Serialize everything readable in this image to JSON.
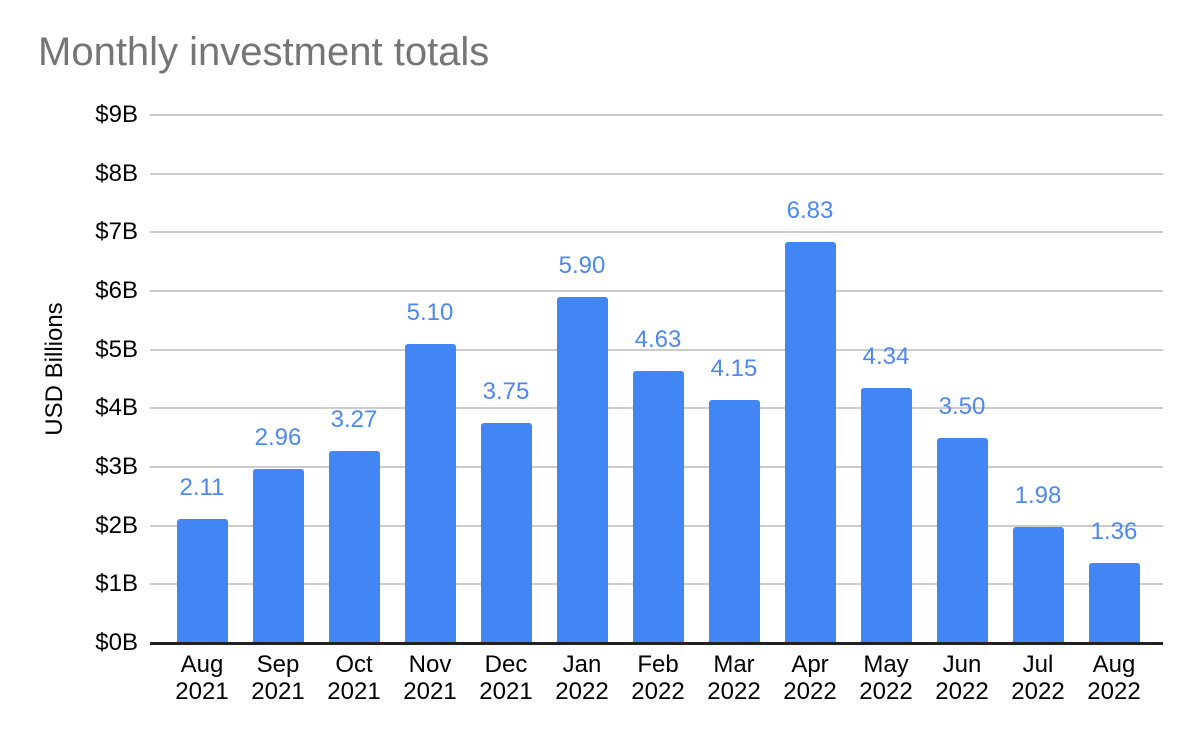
{
  "chart_data": {
    "type": "bar",
    "title": "Monthly investment totals",
    "xlabel": "",
    "ylabel": "USD Billions",
    "categories": [
      "Aug 2021",
      "Sep 2021",
      "Oct 2021",
      "Nov 2021",
      "Dec 2021",
      "Jan 2022",
      "Feb 2022",
      "Mar 2022",
      "Apr 2022",
      "May 2022",
      "Jun 2022",
      "Jul 2022",
      "Aug 2022"
    ],
    "values": [
      2.11,
      2.96,
      3.27,
      5.1,
      3.75,
      5.9,
      4.63,
      4.15,
      6.83,
      4.34,
      3.5,
      1.98,
      1.36
    ],
    "data_labels": [
      "2.11",
      "2.96",
      "3.27",
      "5.10",
      "3.75",
      "5.90",
      "4.63",
      "4.15",
      "6.83",
      "4.34",
      "3.50",
      "1.98",
      "1.36"
    ],
    "ylim": [
      0,
      9
    ],
    "yticks": [
      {
        "value": 0,
        "label": "$0B"
      },
      {
        "value": 1,
        "label": "$1B"
      },
      {
        "value": 2,
        "label": "$2B"
      },
      {
        "value": 3,
        "label": "$3B"
      },
      {
        "value": 4,
        "label": "$4B"
      },
      {
        "value": 5,
        "label": "$5B"
      },
      {
        "value": 6,
        "label": "$6B"
      },
      {
        "value": 7,
        "label": "$7B"
      },
      {
        "value": 8,
        "label": "$8B"
      },
      {
        "value": 9,
        "label": "$9B"
      }
    ],
    "grid": true,
    "legend": "none",
    "colors": {
      "bar": "#4285f4",
      "data_label": "#4d88f0",
      "title": "#757575",
      "axis_text": "#000000",
      "gridline": "#cccccc",
      "axis_line": "#212121",
      "background": "#ffffff"
    }
  }
}
